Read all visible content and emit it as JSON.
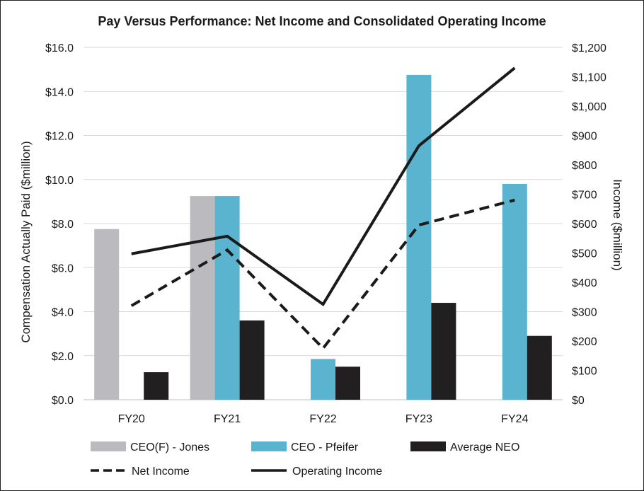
{
  "chart_data": {
    "type": "bar",
    "title": "Pay Versus Performance: Net Income and Consolidated Operating Income",
    "categories": [
      "FY20",
      "FY21",
      "FY22",
      "FY23",
      "FY24"
    ],
    "ylabel": "Compensation Actually Paid ($million)",
    "y2label": "Income  ($million)",
    "ylim": [
      0,
      16
    ],
    "y2lim": [
      0,
      1200
    ],
    "yticks": [
      "$0.0",
      "$2.0",
      "$4.0",
      "$6.0",
      "$8.0",
      "$10.0",
      "$12.0",
      "$14.0",
      "$16.0"
    ],
    "y2ticks": [
      "$0",
      "$100",
      "$200",
      "$300",
      "$400",
      "$500",
      "$600",
      "$700",
      "$800",
      "$900",
      "$1,000",
      "$1,100",
      "$1,200"
    ],
    "grid": true,
    "legend_position": "bottom",
    "bar_series": [
      {
        "name": "CEO(F) - Jones",
        "color": "#bbbabf",
        "values": [
          7.75,
          9.25,
          null,
          null,
          null
        ]
      },
      {
        "name": "CEO - Pfeifer",
        "color": "#5ab4cf",
        "values": [
          null,
          9.25,
          1.85,
          14.75,
          9.8
        ]
      },
      {
        "name": "Average NEO",
        "color": "#221f20",
        "values": [
          1.25,
          3.6,
          1.5,
          4.4,
          2.9
        ]
      }
    ],
    "line_series": [
      {
        "name": "Net Income",
        "axis": "right",
        "style": "dashed",
        "color": "#1a1a1a",
        "values": [
          320,
          510,
          175,
          595,
          680
        ]
      },
      {
        "name": "Operating Income",
        "axis": "right",
        "style": "solid",
        "color": "#1a1a1a",
        "values": [
          497,
          557,
          325,
          865,
          1130
        ]
      }
    ]
  }
}
